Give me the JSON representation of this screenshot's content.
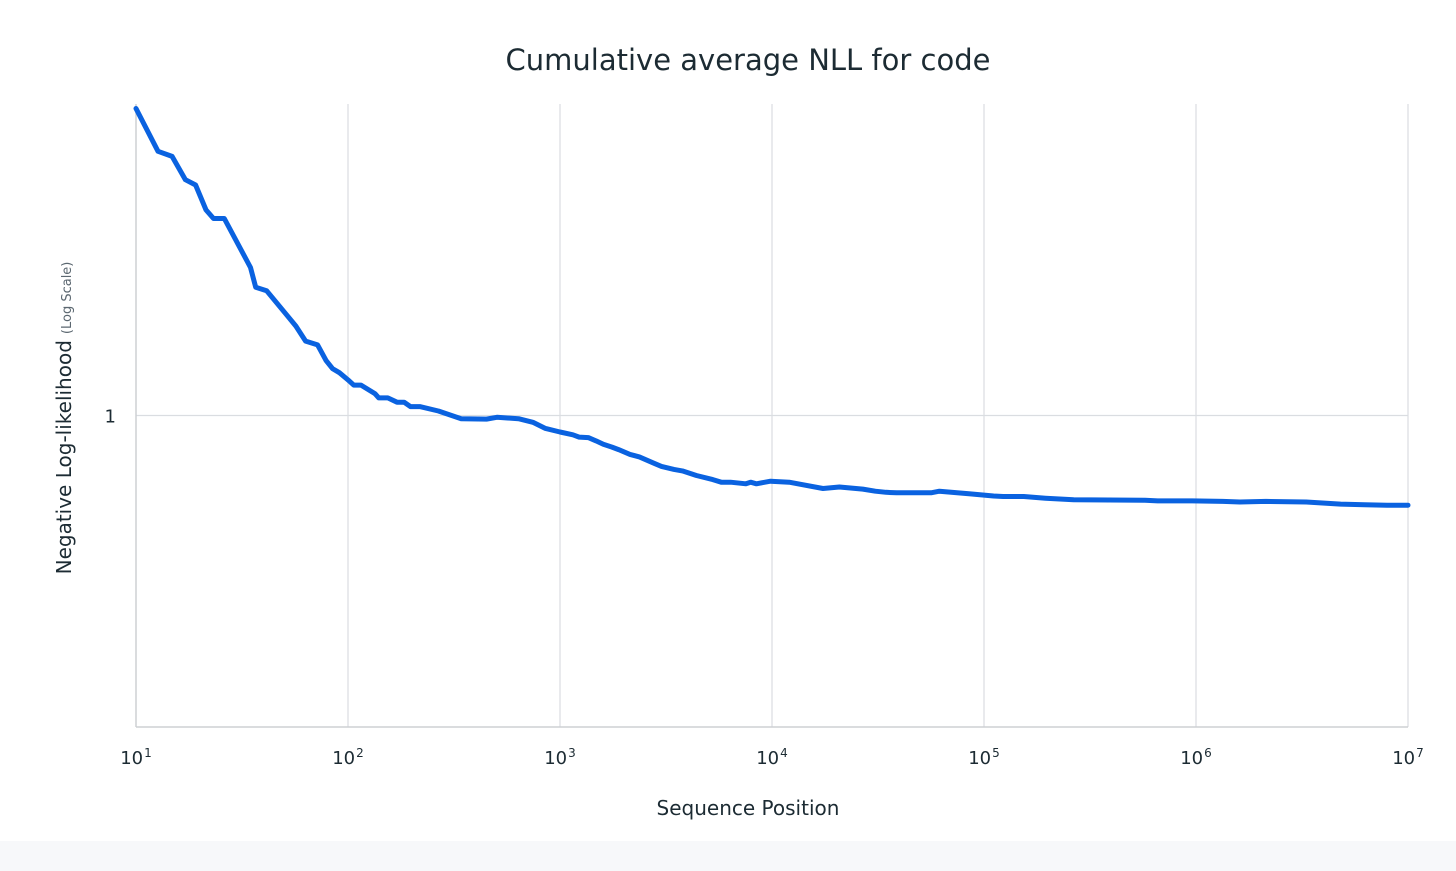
{
  "chart_data": {
    "type": "line",
    "title": "Cumulative average NLL for code",
    "xlabel": "Sequence Position",
    "ylabel": "Negative Log-likelihood",
    "ylabel_note": "(Log Scale)",
    "x_scale": "log",
    "y_scale": "log",
    "xlim": [
      10,
      10000000
    ],
    "ylim": [
      0.5,
      2.0
    ],
    "grid": true,
    "x_ticks": [
      {
        "value": 10,
        "base": "10",
        "exp": "1"
      },
      {
        "value": 100,
        "base": "10",
        "exp": "2"
      },
      {
        "value": 1000,
        "base": "10",
        "exp": "3"
      },
      {
        "value": 10000,
        "base": "10",
        "exp": "4"
      },
      {
        "value": 100000,
        "base": "10",
        "exp": "5"
      },
      {
        "value": 1000000,
        "base": "10",
        "exp": "6"
      },
      {
        "value": 10000000,
        "base": "10",
        "exp": "7"
      }
    ],
    "y_ticks": [
      {
        "value": 1,
        "label": "1"
      }
    ],
    "series": [
      {
        "color": "#0a62e0",
        "x": [
          10,
          12.7,
          14.8,
          17.1,
          19.1,
          21.4,
          23.2,
          26.1,
          34.7,
          36.7,
          41.3,
          51.5,
          56.8,
          63.1,
          71.9,
          78.8,
          84.5,
          91.1,
          101.3,
          106.4,
          115.2,
          133.9,
          139.7,
          154,
          170.3,
          184,
          197,
          218,
          267,
          342,
          450,
          504,
          637,
          745,
          850,
          1000,
          1150,
          1230,
          1360,
          1480,
          1600,
          1760,
          1890,
          2140,
          2370,
          2780,
          3010,
          3450,
          3780,
          4400,
          5260,
          5760,
          6370,
          7530,
          7930,
          8440,
          9840,
          12050,
          17400,
          20800,
          26800,
          30700,
          34500,
          38700,
          56300,
          61600,
          86300,
          111000,
          123000,
          154000,
          195000,
          265000,
          574000,
          660000,
          960000,
          1340000,
          1610000,
          2140000,
          3310000,
          4810000,
          6250000,
          7960000,
          10000000
        ],
        "y": [
          1.98,
          1.8,
          1.78,
          1.69,
          1.67,
          1.58,
          1.55,
          1.55,
          1.39,
          1.33,
          1.32,
          1.25,
          1.22,
          1.18,
          1.17,
          1.13,
          1.11,
          1.1,
          1.08,
          1.07,
          1.07,
          1.05,
          1.04,
          1.04,
          1.03,
          1.03,
          1.02,
          1.02,
          1.01,
          0.993,
          0.992,
          0.996,
          0.993,
          0.985,
          0.972,
          0.964,
          0.958,
          0.953,
          0.952,
          0.945,
          0.938,
          0.932,
          0.927,
          0.917,
          0.912,
          0.899,
          0.893,
          0.887,
          0.884,
          0.875,
          0.867,
          0.862,
          0.862,
          0.859,
          0.862,
          0.859,
          0.864,
          0.862,
          0.85,
          0.853,
          0.849,
          0.845,
          0.843,
          0.842,
          0.842,
          0.845,
          0.84,
          0.836,
          0.835,
          0.835,
          0.832,
          0.829,
          0.828,
          0.827,
          0.827,
          0.826,
          0.825,
          0.826,
          0.825,
          0.821,
          0.82,
          0.819,
          0.819
        ]
      }
    ]
  }
}
